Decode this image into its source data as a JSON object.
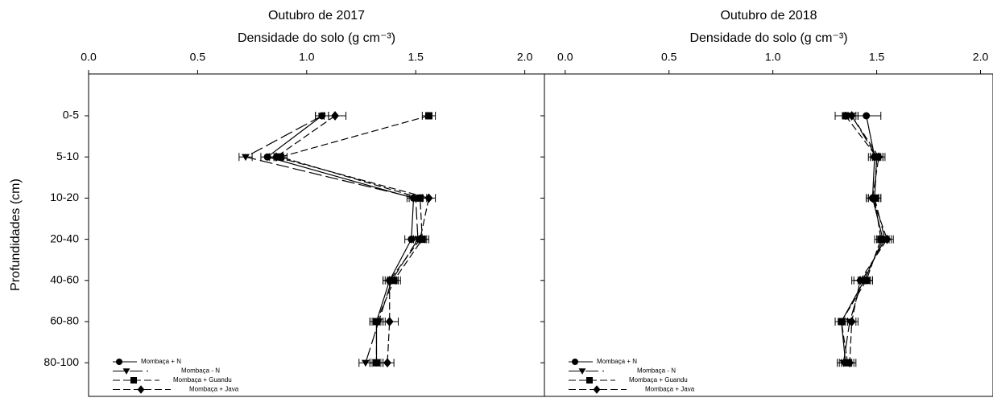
{
  "chart_data": [
    {
      "type": "profile",
      "title": "Outubro de 2017",
      "x_label": "Densidade do solo (g cm⁻³)",
      "y_label": "Profundidades (cm)",
      "categories": [
        "0-5",
        "5-10",
        "10-20",
        "20-40",
        "40-60",
        "60-80",
        "80-100"
      ],
      "xlim": [
        0,
        2.09
      ],
      "xticks": [
        {
          "value": 0,
          "label": "0.0"
        },
        0.5,
        {
          "value": 1,
          "label": "1.0"
        },
        1.5,
        {
          "value": 2,
          "label": "2.0"
        }
      ],
      "legend": "lower left",
      "series": [
        {
          "name": "Mombaça + N",
          "color": "#000000",
          "marker": "circle",
          "linestyle": "solid",
          "values": [
            1.07,
            0.82,
            1.49,
            1.48,
            1.38,
            1.32,
            1.32
          ],
          "errors": [
            0.03,
            0.03,
            0.03,
            0.03,
            0.03,
            0.03,
            0.03
          ]
        },
        {
          "name": "Mombaça - N",
          "color": "#000000",
          "marker": "triangle",
          "linestyle": "longdash",
          "values": [
            1.07,
            0.72,
            1.5,
            1.51,
            1.39,
            1.33,
            1.27
          ],
          "errors": [
            0.03,
            0.03,
            0.03,
            0.03,
            0.03,
            0.03,
            0.03
          ]
        },
        {
          "name": "Mombaça +  Guandu",
          "color": "#000000",
          "marker": "square",
          "linestyle": "dashed",
          "values": [
            1.56,
            0.88,
            1.52,
            1.53,
            1.4,
            1.32,
            1.32
          ],
          "errors": [
            0.03,
            0.03,
            0.03,
            0.03,
            0.03,
            0.03,
            0.03
          ]
        },
        {
          "name": "Mombaça + Java",
          "color": "#000000",
          "marker": "diamond",
          "linestyle": "dashed",
          "values": [
            1.13,
            0.86,
            1.56,
            1.52,
            1.38,
            1.38,
            1.37
          ],
          "errors": [
            0.05,
            0.03,
            0.03,
            0.03,
            0.03,
            0.04,
            0.03
          ]
        }
      ]
    },
    {
      "type": "profile",
      "title": "Outubro de 2018",
      "x_label": "Densidade do solo (g cm⁻³)",
      "categories": [
        null,
        null,
        null,
        null,
        null,
        null,
        null
      ],
      "xlim": [
        -0.1,
        2.06
      ],
      "xticks": [
        {
          "value": 0,
          "label": "0.0"
        },
        0.5,
        {
          "value": 1,
          "label": "1.0"
        },
        1.5,
        {
          "value": 2,
          "label": "2.0"
        }
      ],
      "legend": "lower left",
      "series": [
        {
          "name": "Mombaça + N",
          "color": "#000000",
          "marker": "circle",
          "linestyle": "solid",
          "values": [
            1.45,
            1.49,
            1.48,
            1.53,
            1.44,
            1.33,
            1.35
          ],
          "errors": [
            0.07,
            0.03,
            0.03,
            0.03,
            0.03,
            0.03,
            0.03
          ]
        },
        {
          "name": "Mombaça - N",
          "color": "#000000",
          "marker": "triangle",
          "linestyle": "longdash",
          "values": [
            1.38,
            1.5,
            1.49,
            1.54,
            1.43,
            1.37,
            1.34
          ],
          "errors": [
            0.03,
            0.03,
            0.03,
            0.03,
            0.05,
            0.03,
            0.03
          ]
        },
        {
          "name": "Mombaça +  Guandu",
          "color": "#000000",
          "marker": "square",
          "linestyle": "dashed",
          "values": [
            1.35,
            1.5,
            1.49,
            1.52,
            1.45,
            1.33,
            1.36
          ],
          "errors": [
            0.05,
            0.03,
            0.03,
            0.03,
            0.03,
            0.03,
            0.03
          ]
        },
        {
          "name": "Mombaça + Java",
          "color": "#000000",
          "marker": "diamond",
          "linestyle": "dashed",
          "values": [
            1.38,
            1.51,
            1.48,
            1.55,
            1.42,
            1.38,
            1.37
          ],
          "errors": [
            0.03,
            0.03,
            0.03,
            0.03,
            0.03,
            0.03,
            0.03
          ]
        }
      ]
    }
  ]
}
